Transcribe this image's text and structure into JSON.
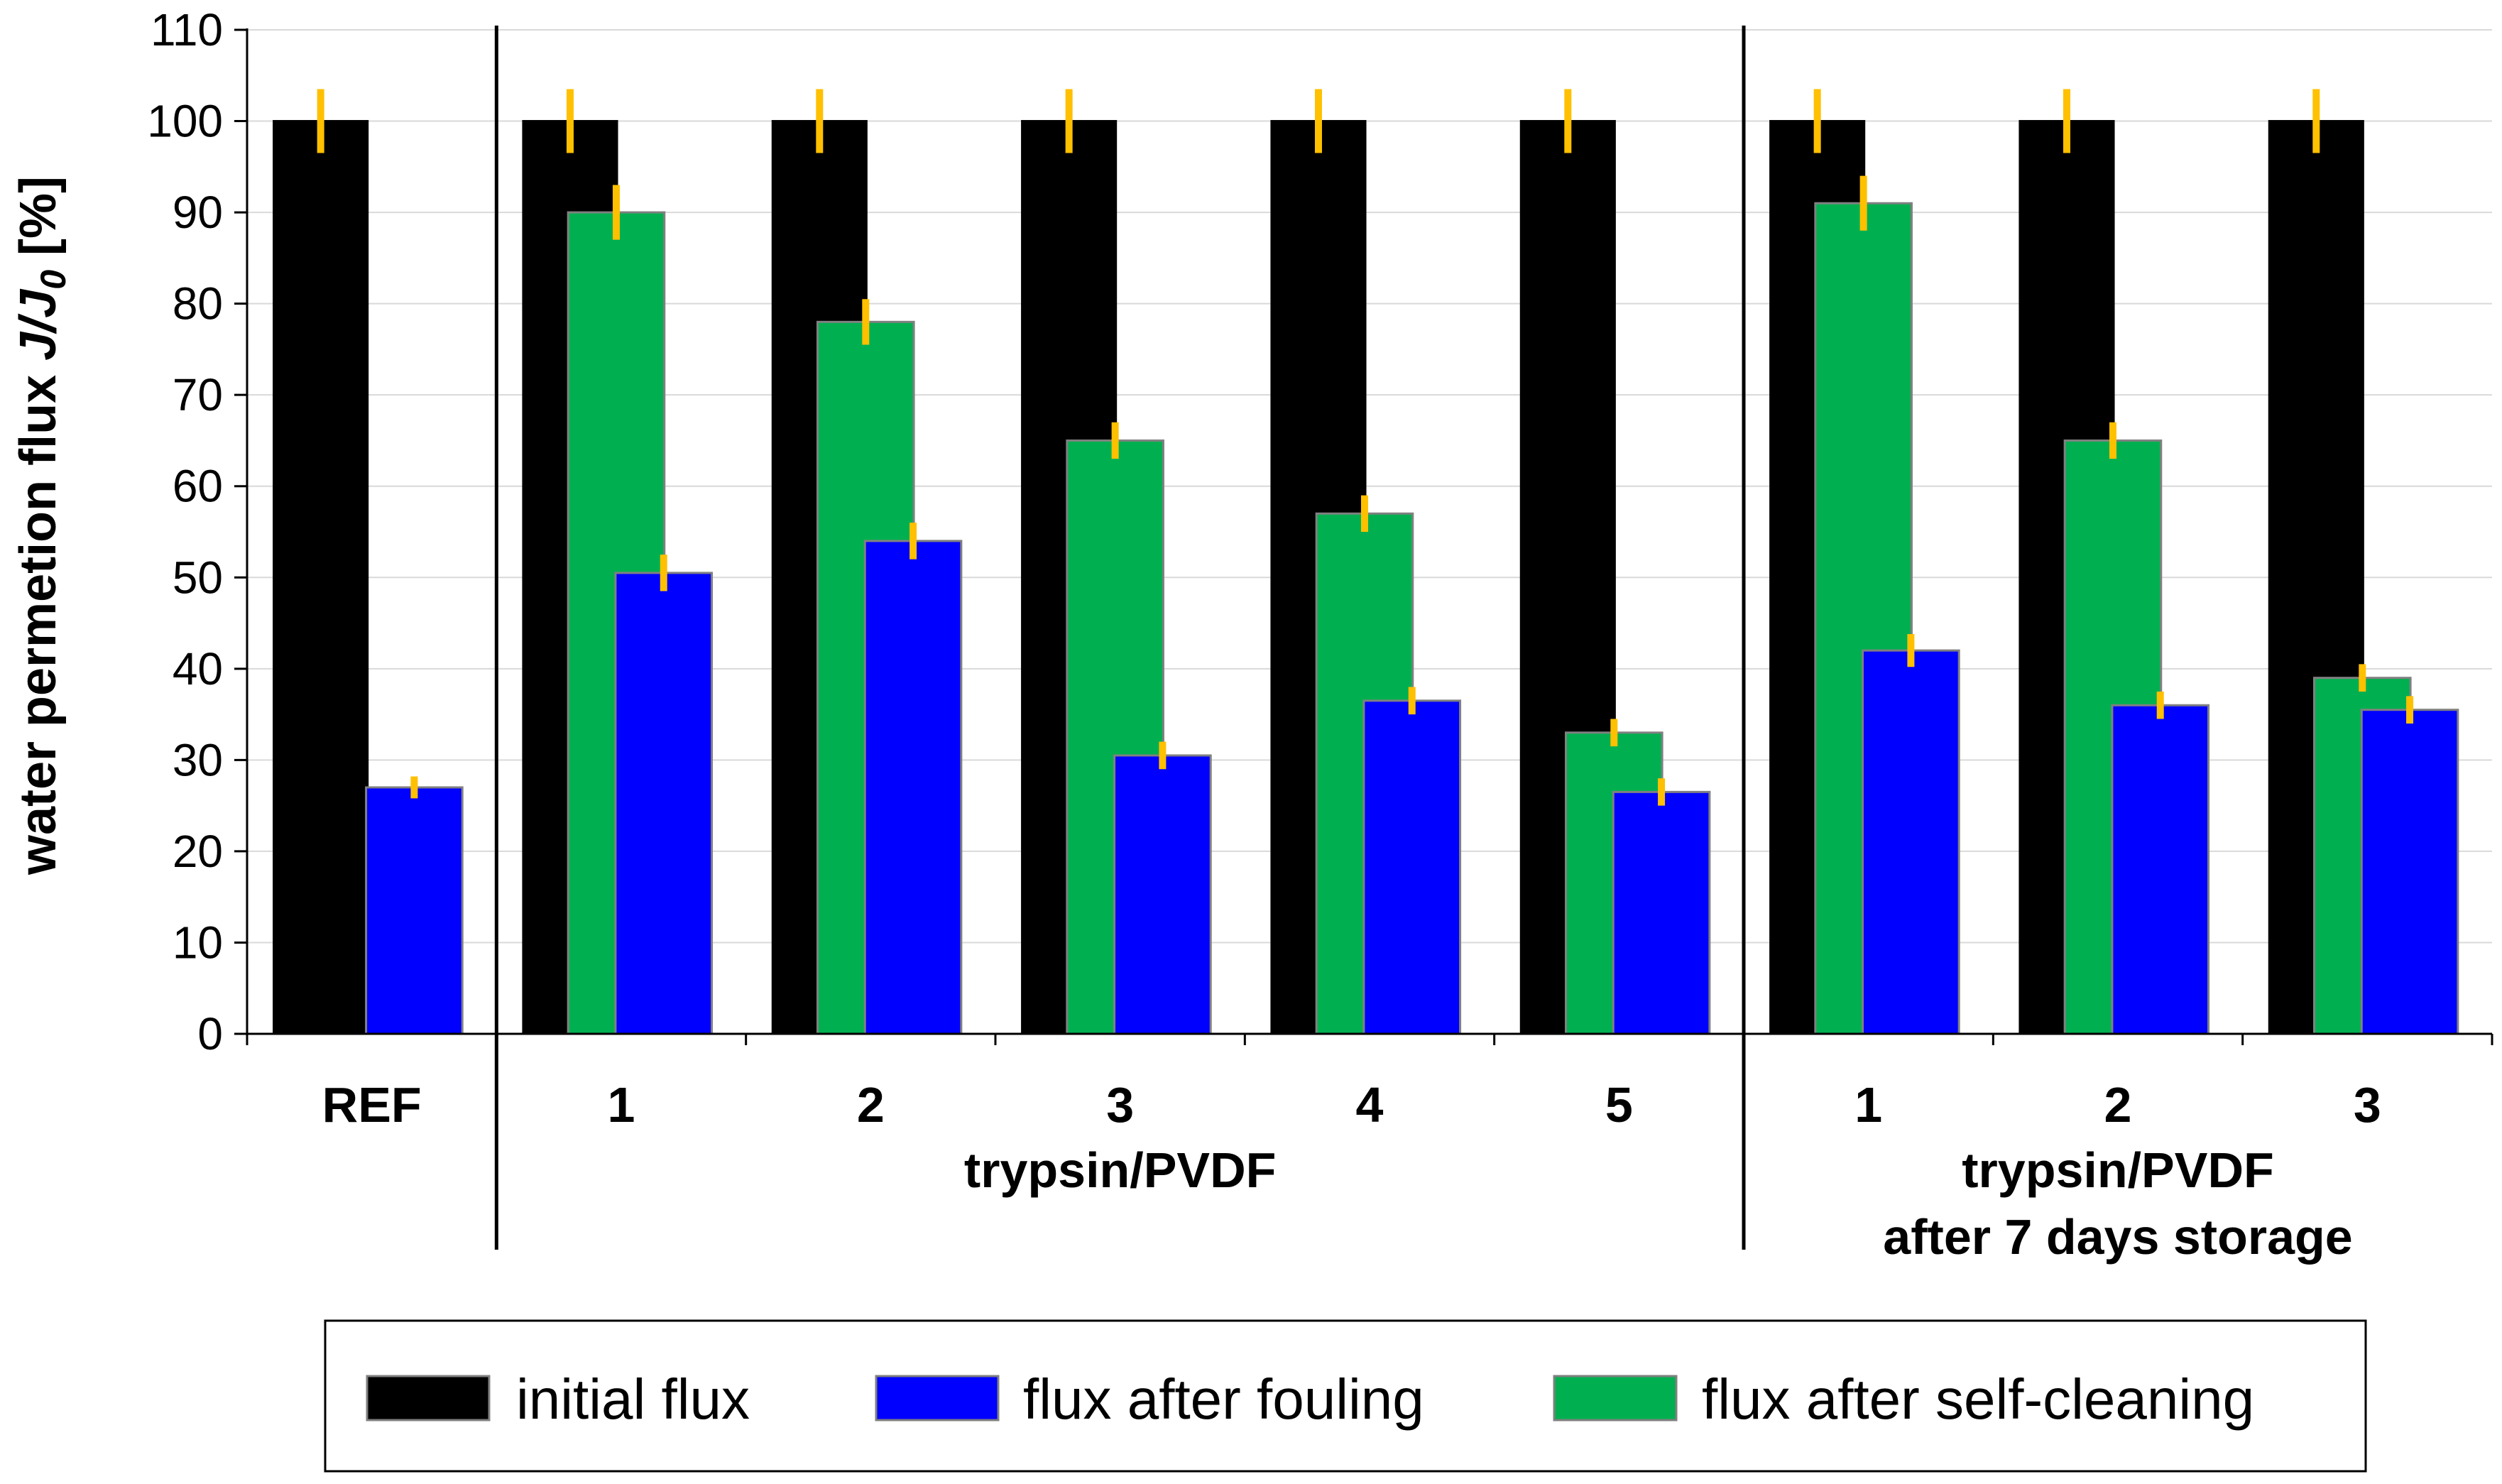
{
  "chart_data": {
    "type": "bar",
    "title": "",
    "ylabel": "water permetion flux J/J0 [%]",
    "ylabel_parts": {
      "prefix": "water permetion flux ",
      "J": "J",
      "slash": "/",
      "J0": "J",
      "sub": "0",
      "suffix": " [%]"
    },
    "ylim": [
      0,
      110
    ],
    "yticks": [
      0,
      10,
      20,
      30,
      40,
      50,
      60,
      70,
      80,
      90,
      100,
      110
    ],
    "grid": true,
    "categories": [
      "REF",
      "1",
      "2",
      "3",
      "4",
      "5",
      "1",
      "2",
      "3"
    ],
    "groups": [
      {
        "label_lines": [
          ""
        ],
        "start": 0,
        "end": 0
      },
      {
        "label_lines": [
          "trypsin/PVDF"
        ],
        "start": 1,
        "end": 5
      },
      {
        "label_lines": [
          "trypsin/PVDF",
          "after 7 days storage"
        ],
        "start": 6,
        "end": 8
      }
    ],
    "series": [
      {
        "name": "initial flux",
        "key": "initial",
        "color": "#000000",
        "values": [
          100,
          100,
          100,
          100,
          100,
          100,
          100,
          100,
          100
        ],
        "errors": [
          3.5,
          3.5,
          3.5,
          3.5,
          3.5,
          3.5,
          3.5,
          3.5,
          3.5
        ]
      },
      {
        "name": "flux after self-cleaning",
        "key": "selfclean",
        "color": "#00B050",
        "values": [
          null,
          90,
          78,
          65,
          57,
          33,
          91,
          65,
          39
        ],
        "errors": [
          null,
          3,
          2.5,
          2,
          2,
          1.5,
          3,
          2,
          1.5
        ]
      },
      {
        "name": "flux after fouling",
        "key": "fouling",
        "color": "#0000FF",
        "values": [
          27,
          50.5,
          54,
          30.5,
          36.5,
          26.5,
          42,
          36,
          35.5
        ],
        "errors": [
          1.2,
          2,
          2,
          1.5,
          1.5,
          1.5,
          1.8,
          1.5,
          1.5
        ]
      }
    ],
    "error_bar_color": "#FFC000",
    "legend": {
      "position": "bottom",
      "items": [
        {
          "label": "initial flux",
          "color": "#000000"
        },
        {
          "label": "flux after fouling",
          "color": "#0000FF"
        },
        {
          "label": "flux after self-cleaning",
          "color": "#00B050"
        }
      ]
    }
  }
}
